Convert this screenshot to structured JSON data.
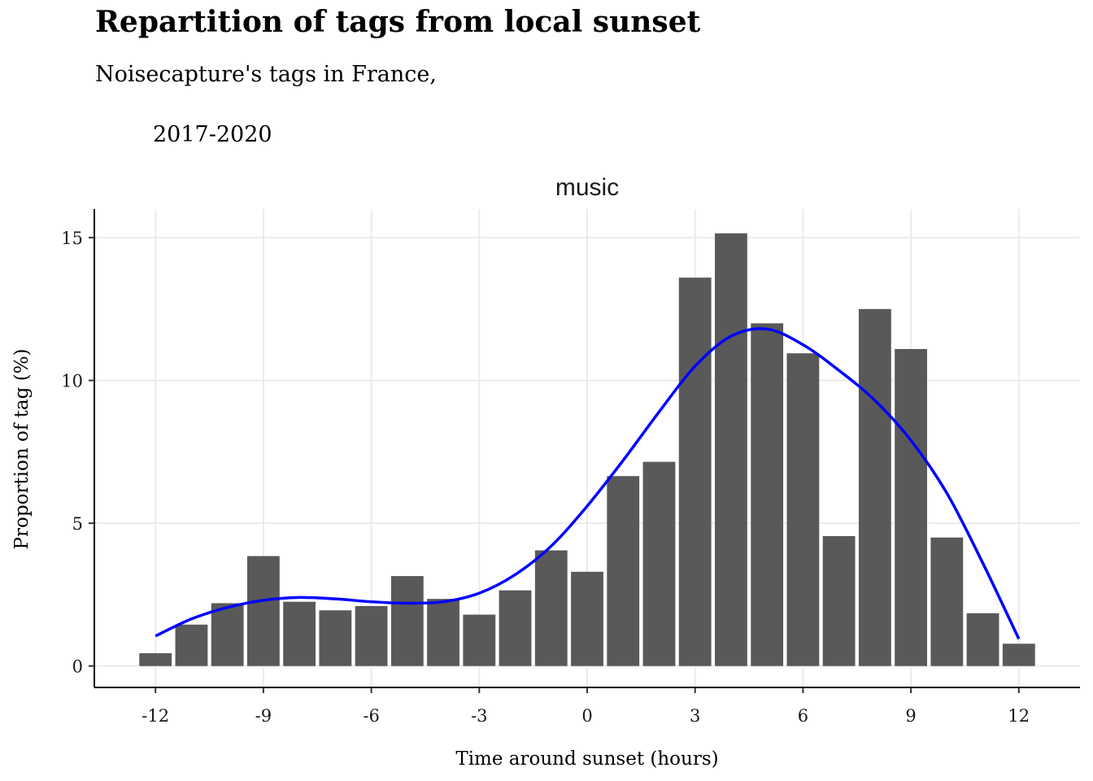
{
  "chart_data": {
    "type": "bar",
    "title": "Repartition of tags from local sunset",
    "subtitle_line1": "Noisecapture's tags in France,",
    "subtitle_line2": "2017-2020",
    "facet": "music",
    "xlabel": "Time around sunset (hours)",
    "ylabel": "Proportion of tag (%)",
    "xlim": [
      -13.7,
      13.7
    ],
    "ylim": [
      -0.75,
      16
    ],
    "x_ticks": [
      -12,
      -9,
      -6,
      -3,
      0,
      3,
      6,
      9,
      12
    ],
    "x_tick_labels": [
      "-12",
      "-9",
      "-6",
      "-3",
      "0",
      "3",
      "6",
      "9",
      "12"
    ],
    "y_ticks": [
      0,
      5,
      10,
      15
    ],
    "y_tick_labels": [
      "0",
      "5",
      "10",
      "15"
    ],
    "grid": true,
    "x": [
      -12,
      -11,
      -10,
      -9,
      -8,
      -7,
      -6,
      -5,
      -4,
      -3,
      -2,
      -1,
      0,
      1,
      2,
      3,
      4,
      5,
      6,
      7,
      8,
      9,
      10,
      11,
      12
    ],
    "values": [
      0.45,
      1.45,
      2.2,
      3.85,
      2.25,
      1.95,
      2.1,
      3.15,
      2.35,
      1.8,
      2.65,
      4.05,
      3.3,
      6.65,
      7.15,
      13.6,
      15.15,
      12.0,
      10.95,
      4.55,
      12.5,
      11.1,
      4.5,
      1.85,
      0.78
    ],
    "smooth": {
      "x": [
        -12,
        -11,
        -10,
        -9,
        -8,
        -7,
        -6,
        -5,
        -4,
        -3,
        -2,
        -1,
        0,
        1,
        2,
        3,
        4,
        5,
        6,
        7,
        8,
        9,
        10,
        11,
        12
      ],
      "y": [
        1.05,
        1.65,
        2.05,
        2.3,
        2.4,
        2.35,
        2.25,
        2.2,
        2.25,
        2.55,
        3.2,
        4.2,
        5.6,
        7.2,
        8.9,
        10.5,
        11.55,
        11.8,
        11.25,
        10.35,
        9.3,
        7.9,
        6.05,
        3.6,
        0.95
      ]
    },
    "bar_color": "#595959",
    "smooth_color": "#0000ff",
    "grid_color": "#ebebeb"
  }
}
